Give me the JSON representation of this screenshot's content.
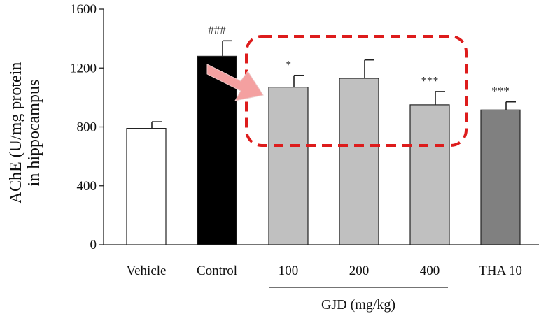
{
  "chart_data": {
    "type": "bar",
    "categories": [
      "Vehicle",
      "Control",
      "100",
      "200",
      "400",
      "THA 10"
    ],
    "values": [
      790,
      1280,
      1070,
      1130,
      950,
      915
    ],
    "errors": [
      45,
      105,
      80,
      125,
      90,
      55
    ],
    "significance": [
      "",
      "###",
      "*",
      "",
      "***",
      "***"
    ],
    "bar_colors": [
      "#ffffff",
      "#000000",
      "#c0c0c0",
      "#c0c0c0",
      "#c0c0c0",
      "#808080"
    ],
    "ylabel_line1": "AChE (U/mg protein",
    "ylabel_line2": "in hippocampus",
    "group_label": "GJD (mg/kg)",
    "yticks": [
      "0",
      "400",
      "800",
      "1200",
      "1600"
    ],
    "ylim": [
      0,
      1600
    ],
    "highlight_color": "#dd1c1c",
    "arrow_color": "#f4a0a0"
  }
}
